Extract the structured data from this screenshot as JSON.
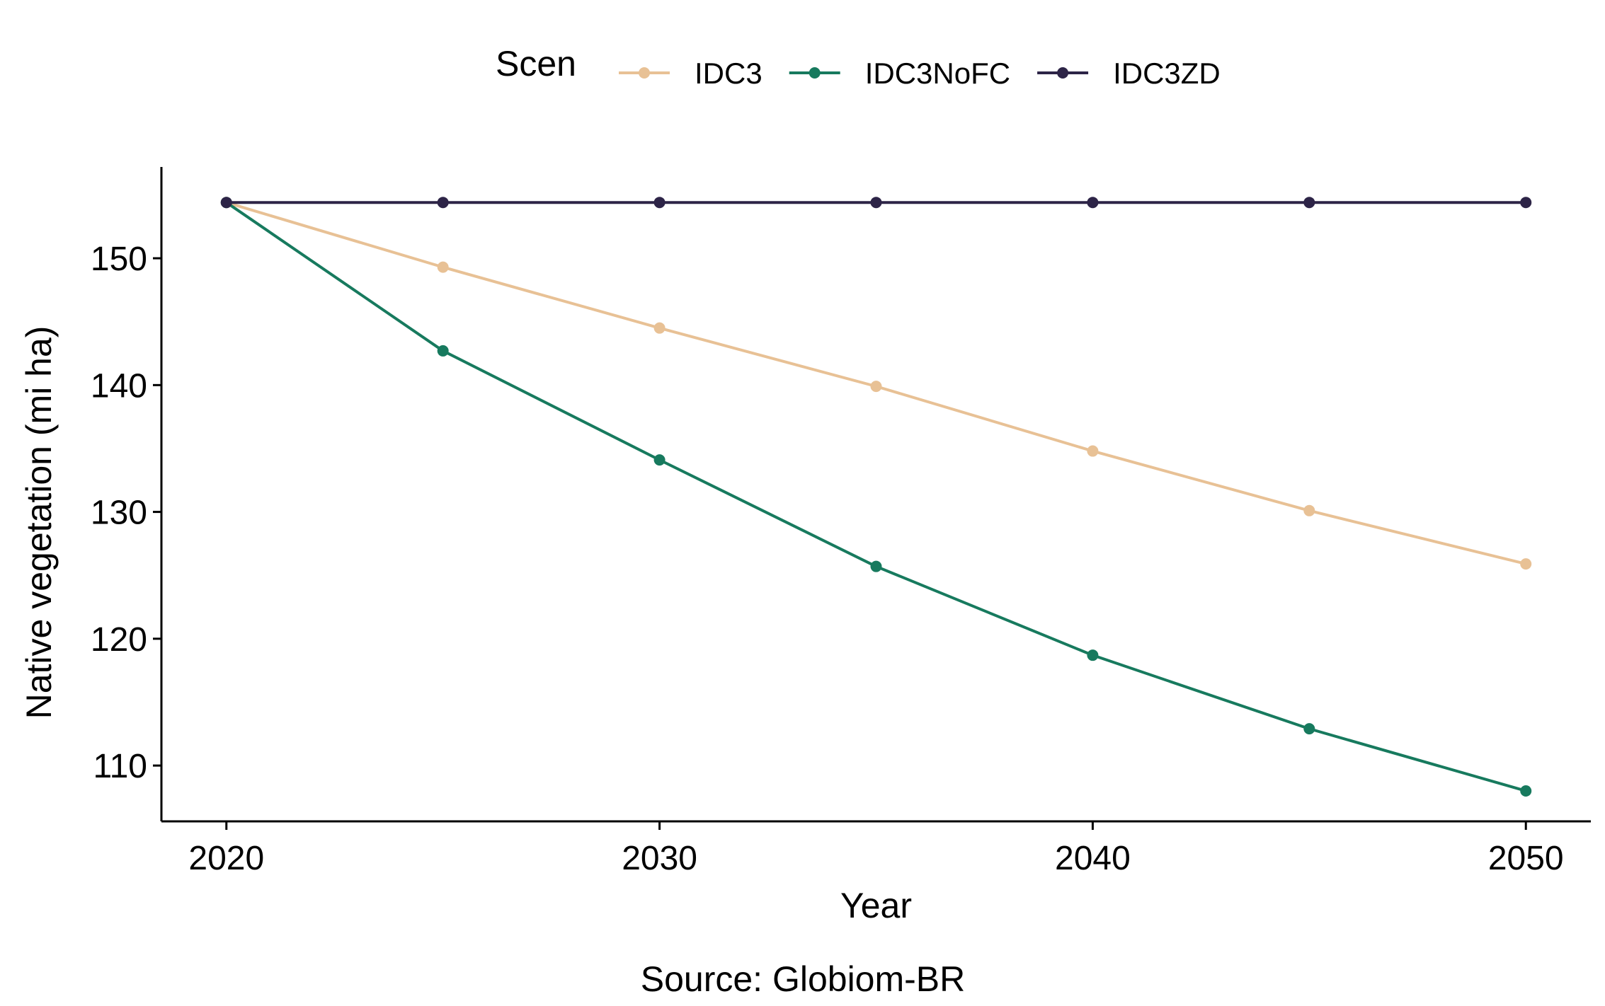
{
  "chart_data": {
    "type": "line",
    "title": "",
    "xlabel": "Year",
    "ylabel": "Native vegetation (mi ha)",
    "caption": "Source: Globiom-BR",
    "legend": {
      "title": "Scen",
      "position": "top"
    },
    "x": [
      2020,
      2025,
      2030,
      2035,
      2040,
      2045,
      2050
    ],
    "xticks": [
      2020,
      2030,
      2040,
      2050
    ],
    "yticks": [
      110,
      120,
      130,
      140,
      150
    ],
    "xlim": [
      2018.5,
      2051.5
    ],
    "ylim": [
      105.6,
      157.2
    ],
    "grid": false,
    "series": [
      {
        "name": "IDC3",
        "color": "#E8C195",
        "values": [
          154.4,
          149.3,
          144.5,
          139.9,
          134.8,
          130.1,
          125.9
        ]
      },
      {
        "name": "IDC3NoFC",
        "color": "#177A5E",
        "values": [
          154.4,
          142.7,
          134.1,
          125.7,
          118.7,
          112.9,
          108.0
        ]
      },
      {
        "name": "IDC3ZD",
        "color": "#2D2447",
        "values": [
          154.4,
          154.4,
          154.4,
          154.4,
          154.4,
          154.4,
          154.4
        ]
      }
    ]
  }
}
